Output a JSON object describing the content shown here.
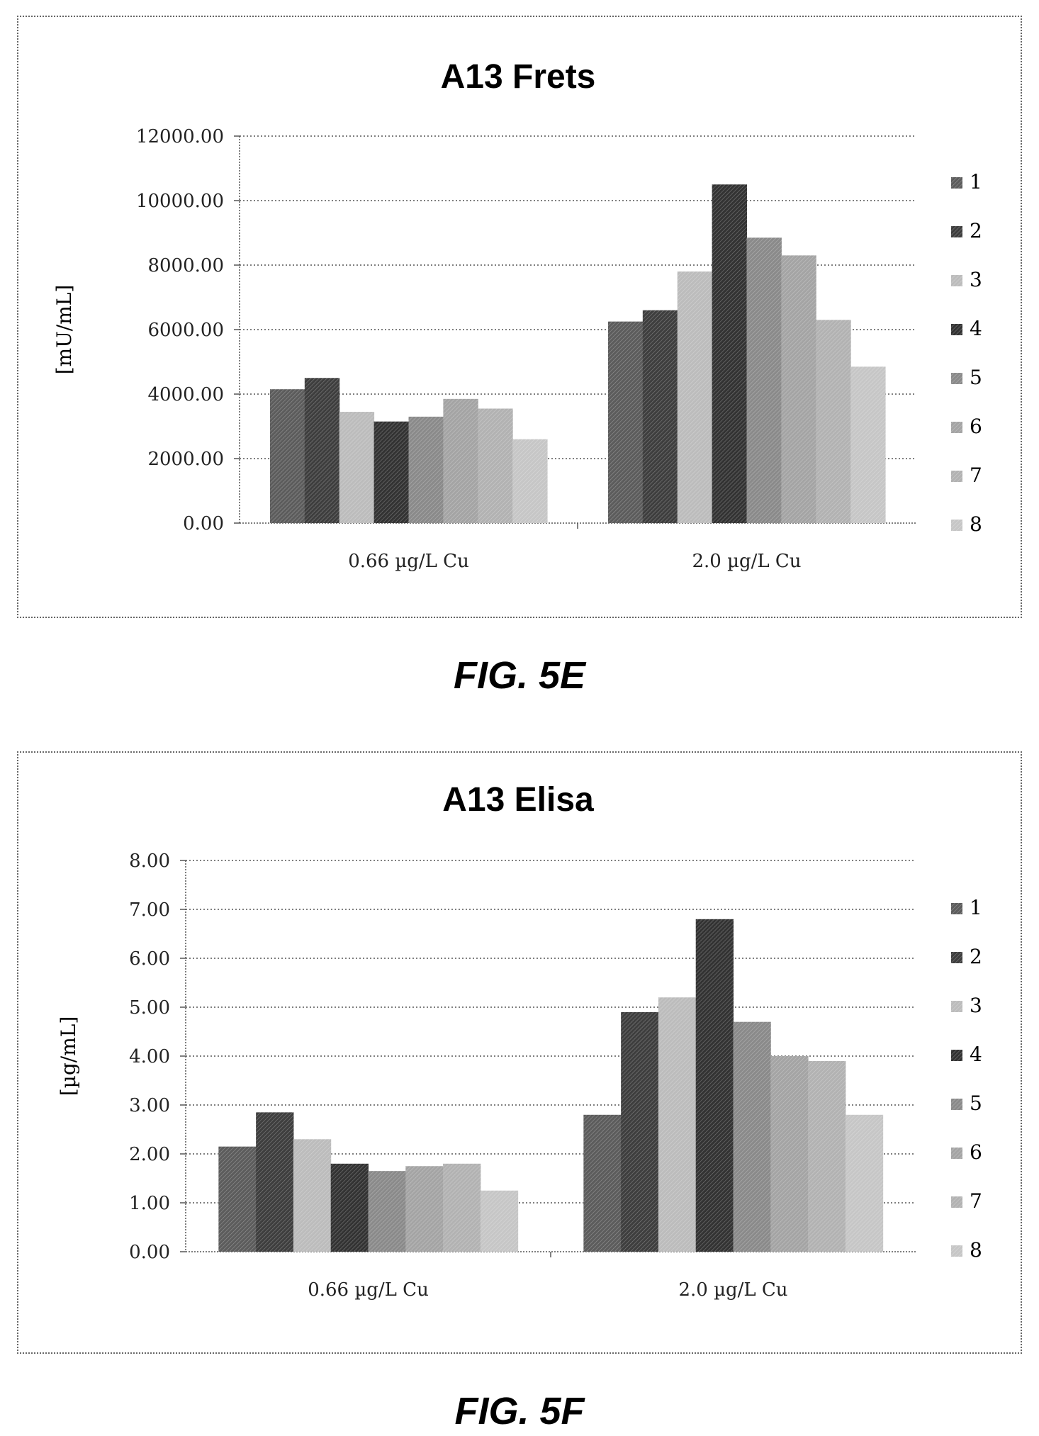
{
  "chart_data": [
    {
      "type": "bar",
      "title": "A13 Frets",
      "ylabel": "[mU/mL]",
      "xlabel": "",
      "ylim": [
        0,
        12000
      ],
      "yticks": [
        "0.00",
        "2000.00",
        "4000.00",
        "6000.00",
        "8000.00",
        "10000.00",
        "12000.00"
      ],
      "categories": [
        "0.66 µg/L Cu",
        "2.0 µg/L Cu"
      ],
      "grid": true,
      "legend_position": "right",
      "series": [
        {
          "name": "1",
          "values": [
            4150,
            6250
          ]
        },
        {
          "name": "2",
          "values": [
            4500,
            6600
          ]
        },
        {
          "name": "3",
          "values": [
            3450,
            7800
          ]
        },
        {
          "name": "4",
          "values": [
            3150,
            10500
          ]
        },
        {
          "name": "5",
          "values": [
            3300,
            8850
          ]
        },
        {
          "name": "6",
          "values": [
            3850,
            8300
          ]
        },
        {
          "name": "7",
          "values": [
            3550,
            6300
          ]
        },
        {
          "name": "8",
          "values": [
            2600,
            4850
          ]
        }
      ]
    },
    {
      "type": "bar",
      "title": "A13 Elisa",
      "ylabel": "[µg/mL]",
      "xlabel": "",
      "ylim": [
        0,
        8
      ],
      "yticks": [
        "0.00",
        "1.00",
        "2.00",
        "3.00",
        "4.00",
        "5.00",
        "6.00",
        "7.00",
        "8.00"
      ],
      "categories": [
        "0.66 µg/L Cu",
        "2.0 µg/L Cu"
      ],
      "grid": true,
      "legend_position": "right",
      "series": [
        {
          "name": "1",
          "values": [
            2.15,
            2.8
          ]
        },
        {
          "name": "2",
          "values": [
            2.85,
            4.9
          ]
        },
        {
          "name": "3",
          "values": [
            2.3,
            5.2
          ]
        },
        {
          "name": "4",
          "values": [
            1.8,
            6.8
          ]
        },
        {
          "name": "5",
          "values": [
            1.65,
            4.7
          ]
        },
        {
          "name": "6",
          "values": [
            1.75,
            4.0
          ]
        },
        {
          "name": "7",
          "values": [
            1.8,
            3.9
          ]
        },
        {
          "name": "8",
          "values": [
            1.25,
            2.8
          ]
        }
      ]
    }
  ],
  "captions": {
    "fig_e": "FIG. 5E",
    "fig_f": "FIG. 5F"
  },
  "colors": {
    "series_fills": [
      "#5c5c5c",
      "#3e3e3e",
      "#bcbcbc",
      "#333333",
      "#8a8a8a",
      "#a4a4a4",
      "#b2b2b2",
      "#c6c6c6"
    ],
    "gridline": "#555555",
    "frame": "#666666"
  }
}
